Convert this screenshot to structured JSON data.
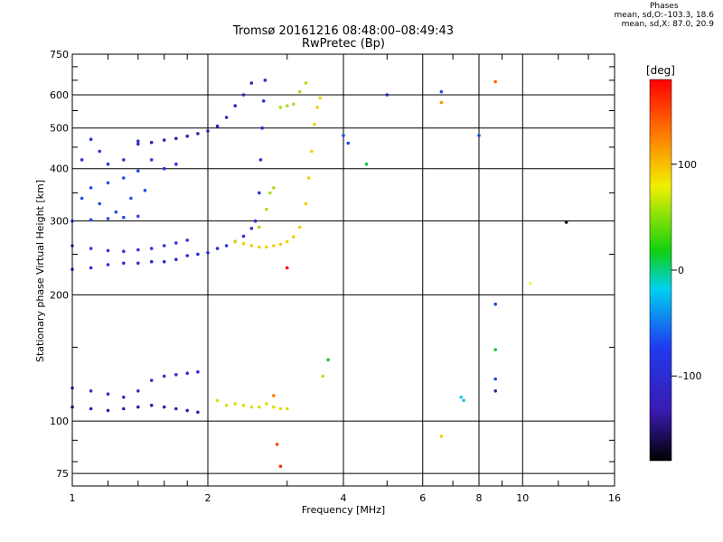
{
  "header": {
    "title_line1": "Tromsø 20161216 08:48:00–08:49:43",
    "title_line2": "RwPretec (Bp)"
  },
  "phases": {
    "heading": "Phases",
    "line_o": "mean, sd,O:–103.3, 18.6",
    "line_x": "mean, sd,X:  87.0, 20.9"
  },
  "chart_data": {
    "type": "scatter",
    "xlabel": "Frequency [MHz]",
    "ylabel": "Stationary phase Virtual Height [km]",
    "xscale": "log",
    "yscale": "log",
    "xlim": [
      1,
      16
    ],
    "ylim": [
      70,
      750
    ],
    "xticks": [
      1,
      2,
      4,
      6,
      8,
      10,
      16
    ],
    "xtick_labels": [
      "1",
      "2",
      "4",
      "6",
      "8",
      "10",
      "16"
    ],
    "yticks": [
      75,
      100,
      200,
      300,
      400,
      500,
      600,
      750
    ],
    "ytick_labels": [
      "75",
      "100",
      "200",
      "300",
      "400",
      "500",
      "600",
      "750"
    ],
    "grid": true,
    "colorbar": {
      "label": "[deg]",
      "range": [
        -180,
        180
      ],
      "ticks": [
        -100,
        0,
        100
      ],
      "tick_labels": [
        "–100",
        "0",
        "100"
      ]
    },
    "traces": [
      {
        "id": "o-F-trace",
        "phase": -110,
        "points": [
          [
            1.0,
            230
          ],
          [
            1.1,
            232
          ],
          [
            1.2,
            236
          ],
          [
            1.3,
            238
          ],
          [
            1.4,
            238
          ],
          [
            1.5,
            240
          ],
          [
            1.6,
            240
          ],
          [
            1.7,
            243
          ],
          [
            1.8,
            248
          ],
          [
            1.9,
            250
          ],
          [
            2.0,
            252
          ],
          [
            2.1,
            258
          ],
          [
            2.2,
            262
          ],
          [
            2.3,
            268
          ],
          [
            2.4,
            276
          ],
          [
            2.5,
            288
          ],
          [
            2.55,
            300
          ],
          [
            2.6,
            350
          ],
          [
            2.62,
            420
          ],
          [
            2.64,
            500
          ],
          [
            2.66,
            580
          ],
          [
            2.68,
            650
          ]
        ]
      },
      {
        "id": "o-F-upper",
        "phase": -105,
        "points": [
          [
            1.0,
            262
          ],
          [
            1.1,
            258
          ],
          [
            1.2,
            255
          ],
          [
            1.3,
            254
          ],
          [
            1.4,
            256
          ],
          [
            1.5,
            258
          ],
          [
            1.6,
            262
          ],
          [
            1.7,
            266
          ],
          [
            1.8,
            270
          ]
        ]
      },
      {
        "id": "o-F-mid",
        "phase": -108,
        "points": [
          [
            1.0,
            300
          ],
          [
            1.1,
            302
          ],
          [
            1.2,
            304
          ],
          [
            1.3,
            306
          ],
          [
            1.4,
            308
          ]
        ]
      },
      {
        "id": "o-F2-reflection",
        "phase": -112,
        "points": [
          [
            1.4,
            458
          ],
          [
            1.5,
            462
          ],
          [
            1.6,
            468
          ],
          [
            1.7,
            472
          ],
          [
            1.8,
            478
          ],
          [
            1.9,
            485
          ],
          [
            2.0,
            492
          ],
          [
            2.1,
            505
          ],
          [
            2.2,
            530
          ],
          [
            2.3,
            565
          ],
          [
            2.4,
            600
          ],
          [
            2.5,
            640
          ]
        ]
      },
      {
        "id": "o-cluster-300-400",
        "phase": -108,
        "points": [
          [
            1.05,
            340
          ],
          [
            1.1,
            360
          ],
          [
            1.15,
            330
          ],
          [
            1.2,
            370
          ],
          [
            1.25,
            315
          ],
          [
            1.3,
            380
          ],
          [
            1.35,
            340
          ],
          [
            1.4,
            395
          ],
          [
            1.45,
            355
          ]
        ]
      },
      {
        "id": "o-cluster-400-480",
        "phase": -104,
        "points": [
          [
            1.05,
            420
          ],
          [
            1.1,
            470
          ],
          [
            1.15,
            440
          ],
          [
            1.2,
            410
          ],
          [
            1.3,
            420
          ],
          [
            1.4,
            465
          ],
          [
            1.5,
            420
          ],
          [
            1.6,
            400
          ],
          [
            1.7,
            410
          ]
        ]
      },
      {
        "id": "o-E-trace",
        "phase": -120,
        "points": [
          [
            1.0,
            108
          ],
          [
            1.1,
            107
          ],
          [
            1.2,
            106
          ],
          [
            1.3,
            107
          ],
          [
            1.4,
            108
          ],
          [
            1.5,
            109
          ],
          [
            1.6,
            108
          ],
          [
            1.7,
            107
          ],
          [
            1.8,
            106
          ],
          [
            1.9,
            105
          ]
        ]
      },
      {
        "id": "o-Es-trace",
        "phase": -112,
        "points": [
          [
            1.0,
            120
          ],
          [
            1.1,
            118
          ],
          [
            1.2,
            116
          ],
          [
            1.3,
            114
          ],
          [
            1.4,
            118
          ],
          [
            1.5,
            125
          ],
          [
            1.6,
            128
          ],
          [
            1.7,
            129
          ],
          [
            1.8,
            130
          ],
          [
            1.9,
            131
          ]
        ]
      },
      {
        "id": "x-F-trace",
        "phase": 80,
        "points": [
          [
            2.3,
            268
          ],
          [
            2.4,
            265
          ],
          [
            2.5,
            262
          ],
          [
            2.6,
            260
          ],
          [
            2.7,
            260
          ],
          [
            2.8,
            262
          ],
          [
            2.9,
            264
          ],
          [
            3.0,
            268
          ],
          [
            3.1,
            275
          ],
          [
            3.2,
            290
          ],
          [
            3.3,
            330
          ],
          [
            3.35,
            380
          ],
          [
            3.4,
            440
          ],
          [
            3.45,
            510
          ],
          [
            3.5,
            560
          ],
          [
            3.55,
            590
          ]
        ]
      },
      {
        "id": "x-F-hook",
        "phase": 45,
        "points": [
          [
            2.6,
            290
          ],
          [
            2.7,
            320
          ],
          [
            2.75,
            350
          ],
          [
            2.8,
            360
          ],
          [
            2.9,
            560
          ],
          [
            3.0,
            565
          ],
          [
            3.1,
            570
          ],
          [
            3.2,
            610
          ],
          [
            3.3,
            640
          ]
        ]
      },
      {
        "id": "x-E-trace",
        "phase": 75,
        "points": [
          [
            2.1,
            112
          ],
          [
            2.2,
            109
          ],
          [
            2.3,
            110
          ],
          [
            2.4,
            109
          ],
          [
            2.5,
            108
          ],
          [
            2.6,
            108
          ],
          [
            2.7,
            110
          ],
          [
            2.8,
            108
          ],
          [
            2.9,
            107
          ],
          [
            3.0,
            107
          ]
        ]
      },
      {
        "id": "sparse-points",
        "phase": 0,
        "points": [
          [
            4.0,
            480
          ],
          [
            4.1,
            460
          ],
          [
            4.5,
            410
          ],
          [
            5.0,
            600
          ],
          [
            6.6,
            610
          ],
          [
            6.6,
            575
          ],
          [
            6.6,
            92
          ],
          [
            7.3,
            114
          ],
          [
            7.4,
            112
          ],
          [
            8.0,
            480
          ],
          [
            8.7,
            645
          ],
          [
            8.7,
            190
          ],
          [
            8.7,
            148
          ],
          [
            8.7,
            126
          ],
          [
            8.7,
            118
          ],
          [
            10.4,
            213
          ],
          [
            12.5,
            298
          ],
          [
            3.6,
            128
          ],
          [
            3.7,
            140
          ],
          [
            2.8,
            115
          ],
          [
            2.85,
            88
          ],
          [
            2.9,
            78
          ],
          [
            3.0,
            232
          ]
        ]
      }
    ],
    "trace_colors": {
      "o-F-trace": "#2a2fd8",
      "o-F-upper": "#3434e0",
      "o-F-mid": "#2c46e6",
      "o-F2-reflection": "#3a1fb4",
      "o-cluster-300-400": "#1f4fe8",
      "o-cluster-400-480": "#2a34d8",
      "o-E-trace": "#3a1ab0",
      "o-Es-trace": "#3f2ad2",
      "x-F-trace": "#f0d000",
      "x-F-hook": "#a8e020",
      "x-E-trace": "#d8e010",
      "sparse-points": "#2a6cf0"
    },
    "sparse_colors": [
      "#1a4ce0",
      "#1a4ce0",
      "#20c040",
      "#2030a0",
      "#1a4ce0",
      "#f0a000",
      "#f0d000",
      "#20c8e0",
      "#20c8e0",
      "#1a4ce0",
      "#ff6000",
      "#1a4ce0",
      "#20c040",
      "#1a4ce0",
      "#2030a0",
      "#f0f060",
      "#000000",
      "#c0e020",
      "#20c040",
      "#ff8000",
      "#ff4000",
      "#ff3000",
      "#ff0000"
    ]
  }
}
